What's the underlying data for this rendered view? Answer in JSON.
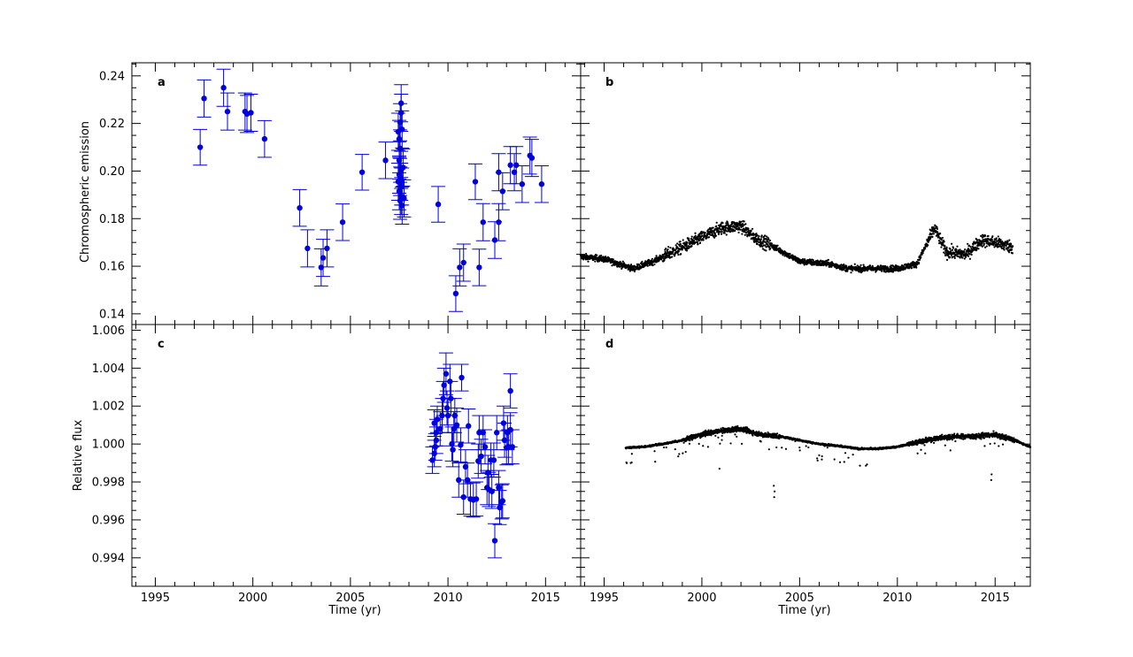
{
  "chart_data": [
    {
      "panel": "a",
      "type": "scatter",
      "xlabel": "",
      "ylabel": "Chromospheric emission",
      "xlim": [
        1993.8,
        2016.8
      ],
      "ylim": [
        0.1355,
        0.2455
      ],
      "xticks": [
        1995,
        2000,
        2005,
        2010,
        2015
      ],
      "yticks": [
        0.14,
        0.16,
        0.18,
        0.2,
        0.22,
        0.24
      ],
      "yticklabels": [
        "0.14",
        "0.16",
        "0.18",
        "0.20",
        "0.22",
        "0.24"
      ],
      "color": "#0000dd",
      "error_bars": true,
      "points": [
        {
          "x": 1997.3,
          "y": 0.21,
          "err": 0.0075
        },
        {
          "x": 1997.5,
          "y": 0.2305,
          "err": 0.0078
        },
        {
          "x": 1998.5,
          "y": 0.235,
          "err": 0.0078
        },
        {
          "x": 1998.7,
          "y": 0.225,
          "err": 0.0078
        },
        {
          "x": 1999.6,
          "y": 0.225,
          "err": 0.0078
        },
        {
          "x": 1999.7,
          "y": 0.224,
          "err": 0.0078
        },
        {
          "x": 1999.9,
          "y": 0.2245,
          "err": 0.0078
        },
        {
          "x": 2000.6,
          "y": 0.2135,
          "err": 0.0077
        },
        {
          "x": 2002.4,
          "y": 0.1845,
          "err": 0.0077
        },
        {
          "x": 2002.8,
          "y": 0.1675,
          "err": 0.0078
        },
        {
          "x": 2003.5,
          "y": 0.1595,
          "err": 0.0078
        },
        {
          "x": 2003.6,
          "y": 0.1635,
          "err": 0.0078
        },
        {
          "x": 2003.8,
          "y": 0.1675,
          "err": 0.0078
        },
        {
          "x": 2004.6,
          "y": 0.1785,
          "err": 0.0077
        },
        {
          "x": 2005.6,
          "y": 0.1995,
          "err": 0.0075
        },
        {
          "x": 2006.8,
          "y": 0.2045,
          "err": 0.0077
        },
        {
          "x": 2007.45,
          "y": 0.2165,
          "err": 0.0078
        },
        {
          "x": 2007.5,
          "y": 0.2135,
          "err": 0.0078
        },
        {
          "x": 2007.55,
          "y": 0.2205,
          "err": 0.0078
        },
        {
          "x": 2007.6,
          "y": 0.2285,
          "err": 0.0078
        },
        {
          "x": 2007.6,
          "y": 0.2245,
          "err": 0.0078
        },
        {
          "x": 2007.65,
          "y": 0.2175,
          "err": 0.0078
        },
        {
          "x": 2007.55,
          "y": 0.2095,
          "err": 0.0078
        },
        {
          "x": 2007.5,
          "y": 0.2045,
          "err": 0.0078
        },
        {
          "x": 2007.6,
          "y": 0.2005,
          "err": 0.0078
        },
        {
          "x": 2007.55,
          "y": 0.1975,
          "err": 0.0078
        },
        {
          "x": 2007.6,
          "y": 0.1955,
          "err": 0.0078
        },
        {
          "x": 2007.65,
          "y": 0.1935,
          "err": 0.0078
        },
        {
          "x": 2007.5,
          "y": 0.1915,
          "err": 0.0078
        },
        {
          "x": 2007.6,
          "y": 0.1895,
          "err": 0.0078
        },
        {
          "x": 2007.55,
          "y": 0.1875,
          "err": 0.0078
        },
        {
          "x": 2007.65,
          "y": 0.1855,
          "err": 0.0078
        },
        {
          "x": 2007.6,
          "y": 0.1935,
          "err": 0.0078
        },
        {
          "x": 2007.5,
          "y": 0.1985,
          "err": 0.0078
        },
        {
          "x": 2007.7,
          "y": 0.2015,
          "err": 0.0078
        },
        {
          "x": 2007.45,
          "y": 0.1955,
          "err": 0.0078
        },
        {
          "x": 2007.75,
          "y": 0.1885,
          "err": 0.0078
        },
        {
          "x": 2009.5,
          "y": 0.186,
          "err": 0.0075
        },
        {
          "x": 2010.4,
          "y": 0.1485,
          "err": 0.0075
        },
        {
          "x": 2010.6,
          "y": 0.1595,
          "err": 0.0078
        },
        {
          "x": 2010.8,
          "y": 0.1615,
          "err": 0.0078
        },
        {
          "x": 2011.4,
          "y": 0.1955,
          "err": 0.0075
        },
        {
          "x": 2011.6,
          "y": 0.1595,
          "err": 0.0077
        },
        {
          "x": 2011.8,
          "y": 0.1785,
          "err": 0.0078
        },
        {
          "x": 2012.4,
          "y": 0.171,
          "err": 0.0077
        },
        {
          "x": 2012.6,
          "y": 0.1785,
          "err": 0.0078
        },
        {
          "x": 2012.6,
          "y": 0.1995,
          "err": 0.0078
        },
        {
          "x": 2012.8,
          "y": 0.1915,
          "err": 0.0078
        },
        {
          "x": 2013.2,
          "y": 0.2025,
          "err": 0.0078
        },
        {
          "x": 2013.4,
          "y": 0.1995,
          "err": 0.0078
        },
        {
          "x": 2013.5,
          "y": 0.2025,
          "err": 0.0078
        },
        {
          "x": 2013.8,
          "y": 0.1945,
          "err": 0.0077
        },
        {
          "x": 2014.2,
          "y": 0.2065,
          "err": 0.0078
        },
        {
          "x": 2014.3,
          "y": 0.2055,
          "err": 0.0078
        },
        {
          "x": 2014.8,
          "y": 0.1945,
          "err": 0.0077
        }
      ]
    },
    {
      "panel": "b",
      "type": "scatter",
      "xlabel": "",
      "ylabel": "",
      "xlim": [
        1993.8,
        2016.8
      ],
      "ylim": [
        0.1355,
        0.2455
      ],
      "xticks": [
        1995,
        2000,
        2005,
        2010,
        2015
      ],
      "color": "#000000",
      "error_bars": false,
      "series": {
        "x_start": 1993.8,
        "x_end": 2015.9,
        "trend_knots_x": [
          1993.8,
          1995.0,
          1996.5,
          1997.5,
          1998.5,
          2000.0,
          2001.0,
          2002.0,
          2002.7,
          2003.5,
          2005.0,
          2006.5,
          2007.5,
          2009.0,
          2010.0,
          2011.0,
          2011.9,
          2012.5,
          2013.5,
          2014.3,
          2015.0,
          2015.9
        ],
        "trend_knots_y": [
          0.164,
          0.163,
          0.159,
          0.162,
          0.166,
          0.172,
          0.176,
          0.177,
          0.172,
          0.169,
          0.162,
          0.161,
          0.159,
          0.159,
          0.159,
          0.161,
          0.176,
          0.166,
          0.165,
          0.171,
          0.17,
          0.168
        ]
      }
    },
    {
      "panel": "c",
      "type": "scatter",
      "xlabel": "Time (yr)",
      "ylabel": "Relative flux",
      "xlim": [
        1993.8,
        2016.8
      ],
      "ylim": [
        0.9925,
        1.0063
      ],
      "xticks": [
        1995,
        2000,
        2005,
        2010,
        2015
      ],
      "yticks": [
        0.994,
        0.996,
        0.998,
        1.0,
        1.002,
        1.004,
        1.006
      ],
      "yticklabels": [
        "0.994",
        "0.996",
        "0.998",
        "1.000",
        "1.002",
        "1.004",
        "1.006"
      ],
      "color": "#0000dd",
      "error_bars": true,
      "points": [
        {
          "x": 2009.2,
          "y": 0.99915,
          "err": 0.0007
        },
        {
          "x": 2009.3,
          "y": 0.9995,
          "err": 0.0007
        },
        {
          "x": 2009.35,
          "y": 0.99985,
          "err": 0.0007
        },
        {
          "x": 2009.4,
          "y": 1.0002,
          "err": 0.0007
        },
        {
          "x": 2009.4,
          "y": 1.0006,
          "err": 0.0007
        },
        {
          "x": 2009.3,
          "y": 1.0011,
          "err": 0.0007
        },
        {
          "x": 2009.45,
          "y": 1.0013,
          "err": 0.0007
        },
        {
          "x": 2009.6,
          "y": 1.0008,
          "err": 0.0009
        },
        {
          "x": 2009.7,
          "y": 1.0015,
          "err": 0.0009
        },
        {
          "x": 2009.75,
          "y": 1.0024,
          "err": 0.0009
        },
        {
          "x": 2009.8,
          "y": 1.0031,
          "err": 0.0009
        },
        {
          "x": 2009.9,
          "y": 1.0037,
          "err": 0.0011
        },
        {
          "x": 2009.95,
          "y": 1.0019,
          "err": 0.0009
        },
        {
          "x": 2010.0,
          "y": 1.0015,
          "err": 0.0009
        },
        {
          "x": 2010.1,
          "y": 1.0033,
          "err": 0.0009
        },
        {
          "x": 2010.15,
          "y": 1.0024,
          "err": 0.0009
        },
        {
          "x": 2010.2,
          "y": 1.0,
          "err": 0.0009
        },
        {
          "x": 2010.25,
          "y": 0.9997,
          "err": 0.0009
        },
        {
          "x": 2010.3,
          "y": 1.0008,
          "err": 0.0009
        },
        {
          "x": 2010.35,
          "y": 1.0015,
          "err": 0.0009
        },
        {
          "x": 2010.45,
          "y": 1.001,
          "err": 0.0009
        },
        {
          "x": 2010.55,
          "y": 0.9981,
          "err": 0.0009
        },
        {
          "x": 2010.65,
          "y": 0.99995,
          "err": 0.0009
        },
        {
          "x": 2010.7,
          "y": 1.0035,
          "err": 0.0007
        },
        {
          "x": 2010.8,
          "y": 0.9972,
          "err": 0.0009
        },
        {
          "x": 2010.9,
          "y": 0.9988,
          "err": 0.0009
        },
        {
          "x": 2011.0,
          "y": 0.9981,
          "err": 0.0009
        },
        {
          "x": 2011.05,
          "y": 1.00095,
          "err": 0.0009
        },
        {
          "x": 2011.15,
          "y": 0.9971,
          "err": 0.0009
        },
        {
          "x": 2011.3,
          "y": 0.99705,
          "err": 0.0009
        },
        {
          "x": 2011.45,
          "y": 0.9971,
          "err": 0.0009
        },
        {
          "x": 2011.55,
          "y": 0.9991,
          "err": 0.0009
        },
        {
          "x": 2011.6,
          "y": 1.0006,
          "err": 0.0009
        },
        {
          "x": 2011.7,
          "y": 0.99935,
          "err": 0.0009
        },
        {
          "x": 2011.8,
          "y": 1.0006,
          "err": 0.0009
        },
        {
          "x": 2011.9,
          "y": 0.99985,
          "err": 0.0009
        },
        {
          "x": 2012.0,
          "y": 0.9977,
          "err": 0.0009
        },
        {
          "x": 2012.05,
          "y": 0.9985,
          "err": 0.0009
        },
        {
          "x": 2012.1,
          "y": 0.9976,
          "err": 0.0009
        },
        {
          "x": 2012.2,
          "y": 0.99915,
          "err": 0.0009
        },
        {
          "x": 2012.25,
          "y": 0.9975,
          "err": 0.0009
        },
        {
          "x": 2012.35,
          "y": 0.99915,
          "err": 0.0009
        },
        {
          "x": 2012.4,
          "y": 0.9949,
          "err": 0.0009
        },
        {
          "x": 2012.5,
          "y": 1.0006,
          "err": 0.0009
        },
        {
          "x": 2012.6,
          "y": 0.9977,
          "err": 0.0009
        },
        {
          "x": 2012.65,
          "y": 0.99665,
          "err": 0.0009
        },
        {
          "x": 2012.75,
          "y": 0.99695,
          "err": 0.0009
        },
        {
          "x": 2012.8,
          "y": 0.997,
          "err": 0.0009
        },
        {
          "x": 2012.85,
          "y": 1.0011,
          "err": 0.0009
        },
        {
          "x": 2012.9,
          "y": 1.0002,
          "err": 0.0009
        },
        {
          "x": 2013.0,
          "y": 0.9998,
          "err": 0.0009
        },
        {
          "x": 2013.05,
          "y": 1.0006,
          "err": 0.0009
        },
        {
          "x": 2013.1,
          "y": 0.99985,
          "err": 0.0009
        },
        {
          "x": 2013.2,
          "y": 1.0028,
          "err": 0.0009
        },
        {
          "x": 2013.3,
          "y": 0.99985,
          "err": 0.0009
        },
        {
          "x": 2013.2,
          "y": 1.00075,
          "err": 0.0009
        }
      ]
    },
    {
      "panel": "d",
      "type": "scatter",
      "xlabel": "Time (yr)",
      "ylabel": "",
      "xlim": [
        1993.8,
        2016.8
      ],
      "ylim": [
        0.9925,
        1.0063
      ],
      "xticks": [
        1995,
        2000,
        2005,
        2010,
        2015
      ],
      "color": "#000000",
      "error_bars": false,
      "series": {
        "x_start": 1996.1,
        "x_end": 2016.8,
        "trend_knots_x": [
          1996.1,
          1997.0,
          1998.0,
          1999.0,
          2000.0,
          2001.0,
          2002.0,
          2003.0,
          2004.0,
          2005.0,
          2006.0,
          2007.0,
          2008.0,
          2009.0,
          2010.0,
          2011.0,
          2012.0,
          2013.0,
          2014.0,
          2015.0,
          2016.0,
          2016.8
        ],
        "trend_knots_y": [
          0.9998,
          0.99985,
          1.0,
          1.0002,
          1.0005,
          1.0007,
          1.0008,
          1.0005,
          1.0004,
          1.0002,
          1.0,
          0.9999,
          0.99975,
          0.99975,
          0.99985,
          1.0001,
          1.0003,
          1.0004,
          1.0004,
          1.0005,
          1.0002,
          0.99985
        ],
        "dips": [
          {
            "x": 2003.7,
            "y": 0.9972
          },
          {
            "x": 2003.72,
            "y": 0.9975
          },
          {
            "x": 2003.68,
            "y": 0.9978
          },
          {
            "x": 2014.8,
            "y": 0.9981
          },
          {
            "x": 2014.82,
            "y": 0.9984
          },
          {
            "x": 2000.9,
            "y": 0.9987
          }
        ]
      }
    }
  ]
}
